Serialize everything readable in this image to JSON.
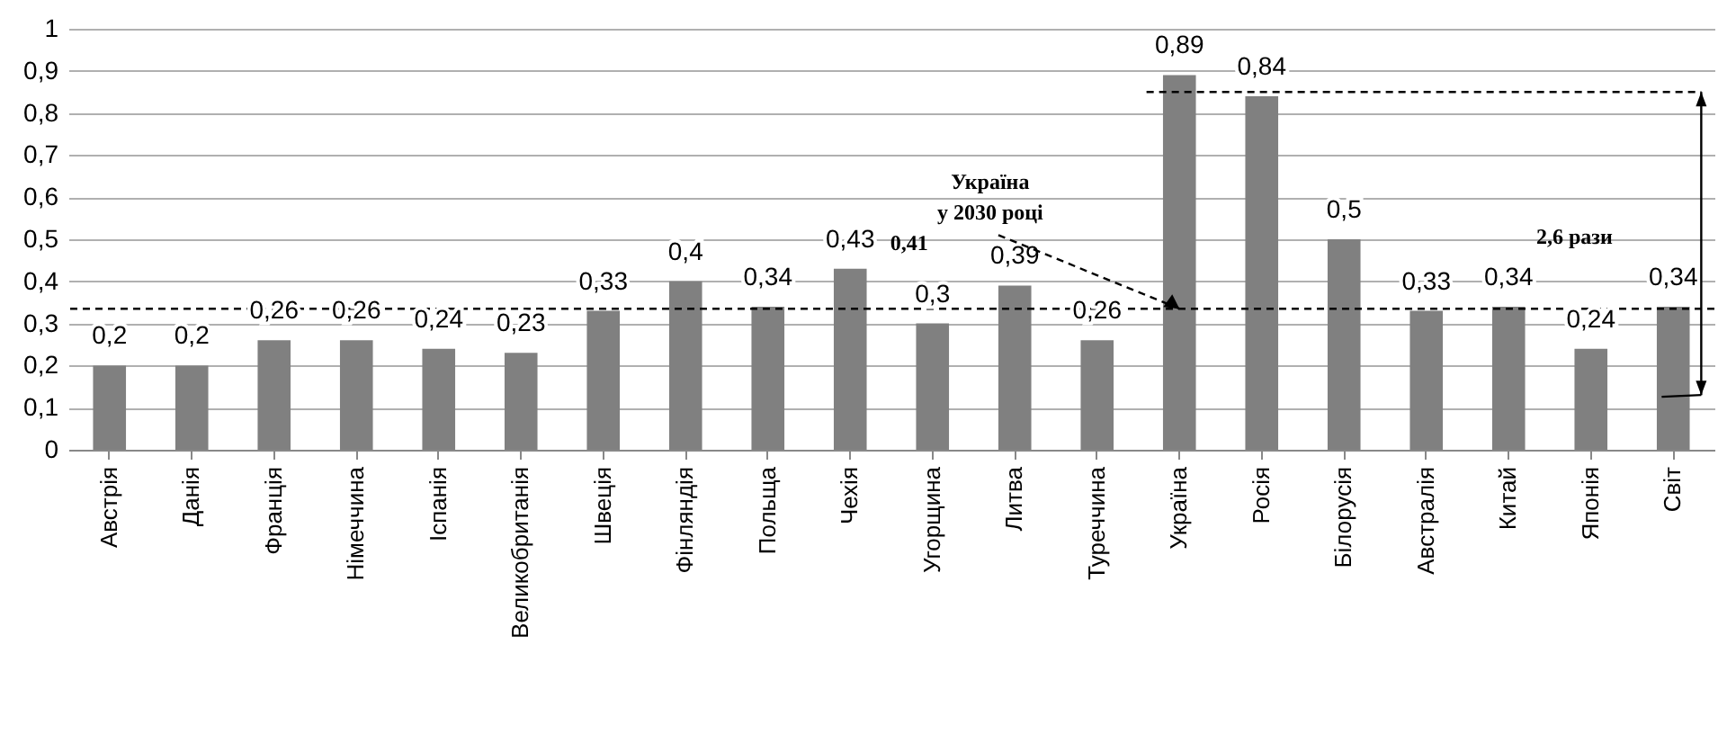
{
  "chart_data": {
    "type": "bar",
    "categories": [
      "Австрія",
      "Данія",
      "Франція",
      "Німеччина",
      "Іспанія",
      "Великобританія",
      "Швеція",
      "Фінляндія",
      "Польща",
      "Чехія",
      "Угорщина",
      "Литва",
      "Туреччина",
      "Україна",
      "Росія",
      "Білорусія",
      "Австралія",
      "Китай",
      "Японія",
      "Світ"
    ],
    "values": [
      0.2,
      0.2,
      0.26,
      0.26,
      0.24,
      0.23,
      0.33,
      0.4,
      0.34,
      0.43,
      0.3,
      0.39,
      0.26,
      0.89,
      0.84,
      0.5,
      0.33,
      0.34,
      0.24,
      0.34
    ],
    "value_labels": [
      "0,2",
      "0,2",
      "0,26",
      "0,26",
      "0,24",
      "0,23",
      "0,33",
      "0,4",
      "0,34",
      "0,43",
      "0,3",
      "0,39",
      "0,26",
      "0,89",
      "0,84",
      "0,5",
      "0,33",
      "0,34",
      "0,24",
      "0,34"
    ],
    "color": "#808080",
    "ylim": [
      0,
      1
    ],
    "yticks": [
      0,
      {
        "value": 0.1,
        "label": "0,1"
      },
      {
        "value": 0.2,
        "label": "0,2"
      },
      {
        "value": 0.3,
        "label": "0,3"
      },
      {
        "value": 0.4,
        "label": "0,4"
      },
      {
        "value": 0.5,
        "label": "0,5"
      },
      {
        "value": 0.6,
        "label": "0,6"
      },
      {
        "value": 0.7,
        "label": "0,7"
      },
      {
        "value": 0.8,
        "label": "0,8"
      },
      {
        "value": 0.9,
        "label": "0,9"
      },
      1
    ],
    "grid": "y",
    "ref_lines": [
      {
        "axis": "y",
        "value": 0.335,
        "color": "#000000",
        "line_style": "dashed"
      }
    ],
    "annotations": [
      {
        "text": "Україна\nу 2030 році\n0,41",
        "x": "Україна",
        "y": 0.335
      },
      "2,6 рази"
    ]
  }
}
